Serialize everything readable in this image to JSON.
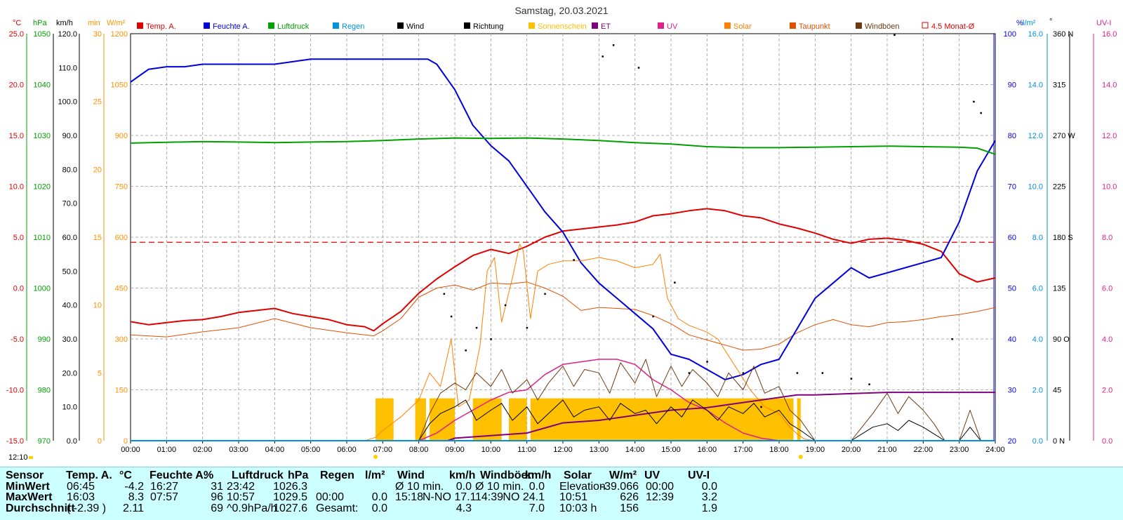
{
  "title": "Samstag, 20.03.2021",
  "time_marker": "12:10",
  "legend": [
    {
      "name": "Temp. A.",
      "color": "#e00000"
    },
    {
      "name": "Feuchte A.",
      "color": "#0000dd"
    },
    {
      "name": "Luftdruck",
      "color": "#00a000"
    },
    {
      "name": "Regen",
      "color": "#0090e0"
    },
    {
      "name": "Wind",
      "color": "#000000"
    },
    {
      "name": "Richtung",
      "color": "#000000"
    },
    {
      "name": "Sonnenschein",
      "color": "#ffc000"
    },
    {
      "name": "ET",
      "color": "#800080"
    },
    {
      "name": "UV",
      "color": "#e0208a"
    },
    {
      "name": "Solar",
      "color": "#ff8000"
    },
    {
      "name": "Taupunkt",
      "color": "#e05000"
    },
    {
      "name": "Windböen",
      "color": "#6b3a10"
    },
    {
      "name": "4.5 Monat-Ø",
      "color": "#e00000"
    }
  ],
  "axis_units": {
    "temp": "°C",
    "pressure": "hPa",
    "wind": "km/h",
    "sun": "min",
    "solar": "W/m²",
    "humidity": "%",
    "rain": "l/m²",
    "direction": "°",
    "uvi": "UV-I"
  },
  "axes": {
    "temp": [
      "25.0",
      "20.0",
      "15.0",
      "10.0",
      "5.0",
      "0.0",
      "-5.0",
      "-10.0",
      "-15.0"
    ],
    "pressure": [
      "1050",
      "1040",
      "1030",
      "1020",
      "1010",
      "1000",
      "990",
      "980",
      "970"
    ],
    "wind": [
      "120.0",
      "110.0",
      "100.0",
      "90.0",
      "80.0",
      "70.0",
      "60.0",
      "50.0",
      "40.0",
      "30.0",
      "20.0",
      "10.0",
      "0.0"
    ],
    "sun": [
      "30",
      "25",
      "20",
      "15",
      "10",
      "5",
      "0"
    ],
    "solar": [
      "1200",
      "1050",
      "900",
      "750",
      "600",
      "450",
      "300",
      "150",
      "0"
    ],
    "humidity": [
      "100",
      "90",
      "80",
      "70",
      "60",
      "50",
      "40",
      "30",
      "20"
    ],
    "rain": [
      "16.0",
      "14.0",
      "12.0",
      "10.0",
      "8.0",
      "6.0",
      "4.0",
      "2.0",
      "0.0"
    ],
    "direction": [
      "360 N",
      "315",
      "270 W",
      "225",
      "180 S",
      "135",
      "90 O",
      "45",
      "0 N"
    ],
    "uvi": [
      "16.0",
      "14.0",
      "12.0",
      "10.0",
      "8.0",
      "6.0",
      "4.0",
      "2.0",
      "0.0"
    ],
    "hours": [
      "00:00",
      "01:00",
      "02:00",
      "03:00",
      "04:00",
      "05:00",
      "06:00",
      "07:00",
      "08:00",
      "09:00",
      "10:00",
      "11:00",
      "12:00",
      "13:00",
      "14:00",
      "15:00",
      "16:00",
      "17:00",
      "18:00",
      "19:00",
      "20:00",
      "21:00",
      "22:00",
      "23:00",
      "24:00"
    ]
  },
  "chart_data": {
    "type": "line",
    "title": "Samstag, 20.03.2021",
    "x_range": [
      0,
      24
    ],
    "reference_line": {
      "name": "4.5 Monat-Ø",
      "axis": "temp",
      "value": 4.5
    },
    "series": [
      {
        "name": "Temp. A.",
        "unit": "°C",
        "x": [
          0,
          0.5,
          1,
          1.5,
          2,
          2.5,
          3,
          3.5,
          4,
          4.5,
          5,
          5.5,
          6,
          6.5,
          6.75,
          7,
          7.5,
          8,
          8.5,
          9,
          9.5,
          10,
          10.5,
          11,
          11.5,
          12,
          12.5,
          13,
          13.5,
          14,
          14.5,
          15,
          15.5,
          16,
          16.5,
          17,
          17.5,
          18,
          18.5,
          19,
          19.5,
          20,
          20.5,
          21,
          21.5,
          22,
          22.5,
          23,
          23.5,
          24
        ],
        "y": [
          -3.3,
          -3.6,
          -3.4,
          -3.2,
          -3.1,
          -2.8,
          -2.4,
          -2.2,
          -2.0,
          -2.5,
          -2.8,
          -3.1,
          -3.6,
          -3.8,
          -4.2,
          -3.5,
          -2.3,
          -0.5,
          0.9,
          2.1,
          3.2,
          3.8,
          3.4,
          4.1,
          5.0,
          5.6,
          5.8,
          6.0,
          6.2,
          6.5,
          7.1,
          7.3,
          7.6,
          7.8,
          7.6,
          7.1,
          6.9,
          6.3,
          5.9,
          5.4,
          4.8,
          4.4,
          4.8,
          4.9,
          4.7,
          4.3,
          3.6,
          1.4,
          0.6,
          1.0
        ]
      },
      {
        "name": "Taupunkt",
        "unit": "°C",
        "x": [
          0,
          1,
          2,
          3,
          4,
          5,
          6,
          6.75,
          7,
          7.5,
          8,
          8.5,
          9,
          9.5,
          10,
          10.5,
          11,
          11.5,
          12,
          12.5,
          13,
          13.5,
          14,
          14.5,
          15,
          15.5,
          16,
          16.5,
          17,
          17.5,
          18,
          18.5,
          19,
          19.5,
          20,
          20.5,
          21,
          21.5,
          22,
          22.5,
          23,
          23.5,
          24
        ],
        "y": [
          -4.6,
          -4.8,
          -4.3,
          -3.9,
          -3.0,
          -3.9,
          -4.4,
          -4.7,
          -4.2,
          -3.0,
          -0.9,
          0.0,
          0.3,
          -0.2,
          0.5,
          0.4,
          0.6,
          0.0,
          -0.8,
          -2.2,
          -1.9,
          -2.0,
          -2.1,
          -2.7,
          -3.5,
          -4.6,
          -5.1,
          -5.6,
          -6.1,
          -6.0,
          -5.5,
          -4.4,
          -3.6,
          -3.1,
          -3.6,
          -3.8,
          -3.4,
          -3.3,
          -3.1,
          -2.8,
          -2.6,
          -2.3,
          -1.9
        ]
      },
      {
        "name": "Feuchte A.",
        "unit": "%",
        "x": [
          0,
          0.3,
          0.5,
          1,
          1.5,
          2,
          2.5,
          3,
          3.5,
          4,
          4.5,
          5,
          5.5,
          6,
          6.5,
          7,
          7.5,
          8,
          8.25,
          8.5,
          9,
          9.5,
          10,
          10.5,
          11,
          11.5,
          12,
          12.5,
          13,
          13.5,
          14,
          14.5,
          15,
          15.5,
          16,
          16.5,
          17,
          17.5,
          18,
          18.5,
          19,
          19.5,
          20,
          20.5,
          21,
          21.5,
          22,
          22.5,
          23,
          23.5,
          24
        ],
        "y": [
          90.5,
          92,
          93,
          93.5,
          93.5,
          94,
          94,
          94,
          94,
          94,
          94.5,
          95,
          95,
          95,
          95,
          95,
          95,
          95,
          95,
          94,
          89,
          82,
          78,
          75,
          70,
          65,
          61,
          55,
          51,
          48,
          45,
          42,
          37,
          36,
          34,
          32,
          33,
          35,
          36,
          42,
          48,
          51,
          54,
          52,
          53,
          54,
          55,
          56,
          63,
          73,
          79
        ]
      },
      {
        "name": "Luftdruck",
        "unit": "hPa",
        "x": [
          0,
          2,
          3,
          4,
          5,
          6,
          7,
          8,
          9,
          10,
          11,
          12,
          13,
          14,
          15,
          16,
          17,
          18,
          19,
          20,
          21,
          22,
          23,
          23.5,
          24
        ],
        "y": [
          1028.5,
          1028.8,
          1028.7,
          1028.6,
          1028.7,
          1028.8,
          1029.0,
          1029.3,
          1029.5,
          1029.4,
          1029.5,
          1029.3,
          1029.0,
          1028.6,
          1028.3,
          1027.8,
          1027.6,
          1027.6,
          1027.7,
          1027.8,
          1027.9,
          1027.8,
          1027.7,
          1027.5,
          1026.3
        ]
      },
      {
        "name": "Solar",
        "unit": "W/m²",
        "x": [
          0,
          6.5,
          6.8,
          7,
          7.5,
          8,
          8.3,
          8.6,
          8.9,
          9.1,
          9.4,
          9.7,
          9.9,
          10.1,
          10.3,
          10.6,
          10.8,
          10.9,
          11.1,
          11.3,
          11.6,
          12,
          12.5,
          13,
          13.5,
          14,
          14.5,
          14.7,
          14.9,
          15.2,
          15.5,
          16,
          16.3,
          16.6,
          16.9,
          17.2,
          17.6,
          18,
          18.3,
          18.5,
          18.7,
          19
        ],
        "y": [
          0,
          0,
          10,
          30,
          70,
          120,
          200,
          160,
          300,
          100,
          120,
          280,
          500,
          540,
          350,
          480,
          580,
          560,
          360,
          500,
          520,
          530,
          530,
          540,
          530,
          510,
          520,
          550,
          420,
          360,
          340,
          320,
          300,
          250,
          200,
          150,
          100,
          80,
          40,
          20,
          5,
          0
        ]
      },
      {
        "name": "UV",
        "unit": "UV-I",
        "x": [
          0,
          8,
          8.5,
          9,
          9.5,
          10,
          10.5,
          11,
          11.5,
          12,
          12.5,
          13,
          13.5,
          14,
          14.5,
          15,
          15.5,
          16,
          16.5,
          17,
          17.5,
          18,
          18.5
        ],
        "y": [
          0,
          0,
          0.3,
          0.8,
          1.2,
          1.6,
          1.9,
          2.0,
          2.6,
          3.0,
          3.1,
          3.2,
          3.2,
          3.0,
          2.4,
          2.0,
          1.5,
          1.2,
          0.7,
          0.3,
          0.1,
          0,
          0
        ]
      },
      {
        "name": "ET",
        "unit": "l/m²",
        "x": [
          0,
          8.8,
          9,
          10,
          11,
          11.5,
          12,
          13,
          14,
          14.5,
          15,
          16,
          16.5,
          17,
          18,
          18.5,
          19,
          20,
          21,
          22,
          23,
          24
        ],
        "y": [
          0,
          0,
          0.1,
          0.2,
          0.3,
          0.5,
          0.7,
          0.8,
          1.0,
          1.1,
          1.2,
          1.3,
          1.4,
          1.5,
          1.7,
          1.8,
          1.8,
          1.85,
          1.9,
          1.9,
          1.9,
          1.9
        ]
      },
      {
        "name": "Wind",
        "unit": "km/h",
        "x": [
          0,
          8,
          8.3,
          8.6,
          9,
          9.3,
          9.6,
          10,
          10.3,
          10.6,
          11,
          11.3,
          11.6,
          12,
          12.3,
          12.6,
          13,
          13.3,
          13.6,
          14,
          14.3,
          14.6,
          15,
          15.3,
          15.6,
          16,
          16.3,
          16.6,
          17,
          17.3,
          17.6,
          18,
          18.3,
          18.6,
          19,
          20,
          20.3,
          20.6,
          21,
          21.3,
          21.6,
          22,
          22.3,
          22.6,
          23,
          23.3,
          23.6,
          24
        ],
        "y": [
          0,
          0,
          5,
          8,
          10,
          12,
          6,
          9,
          11,
          6,
          10,
          5,
          8,
          12,
          7,
          9,
          10,
          6,
          11,
          8,
          9,
          5,
          10,
          7,
          12,
          9,
          6,
          10,
          8,
          11,
          7,
          9,
          5,
          3,
          0,
          0,
          2,
          4,
          5,
          3,
          6,
          4,
          2,
          0,
          0,
          4,
          0,
          0
        ]
      },
      {
        "name": "Windböen",
        "unit": "km/h",
        "x": [
          0,
          8,
          8.3,
          8.6,
          9,
          9.3,
          9.6,
          10,
          10.3,
          10.6,
          11,
          11.3,
          11.6,
          12,
          12.3,
          12.6,
          13,
          13.3,
          13.6,
          14,
          14.3,
          14.6,
          15,
          15.3,
          15.6,
          16,
          16.3,
          16.6,
          17,
          17.3,
          17.6,
          18,
          18.3,
          18.6,
          19,
          20,
          20.3,
          20.6,
          21,
          21.3,
          21.6,
          22,
          22.3,
          22.6,
          23,
          23.3,
          23.6,
          24
        ],
        "y": [
          0,
          0,
          8,
          14,
          17,
          15,
          20,
          16,
          21,
          14,
          18,
          12,
          17,
          22,
          16,
          21,
          20,
          14,
          23,
          17,
          24,
          13,
          22,
          16,
          21,
          17,
          13,
          20,
          15,
          22,
          14,
          16,
          9,
          6,
          0,
          0,
          4,
          8,
          14,
          8,
          13,
          9,
          5,
          0,
          0,
          9,
          0,
          0
        ]
      },
      {
        "name": "Regen",
        "unit": "l/m²",
        "x": [
          0,
          24
        ],
        "y": [
          0,
          0
        ]
      }
    ],
    "sunshine_blocks_hours": [
      [
        6.8,
        7.3
      ],
      [
        7.9,
        8.2
      ],
      [
        8.3,
        9.0
      ],
      [
        9.5,
        10.3
      ],
      [
        10.5,
        11.0
      ],
      [
        11.1,
        18.4
      ],
      [
        18.5,
        18.6
      ]
    ],
    "direction_points": [
      [
        8.7,
        130
      ],
      [
        8.9,
        110
      ],
      [
        9.3,
        80
      ],
      [
        9.6,
        100
      ],
      [
        10,
        90
      ],
      [
        10.4,
        120
      ],
      [
        11,
        100
      ],
      [
        11.5,
        130
      ],
      [
        12.3,
        160
      ],
      [
        13.1,
        340
      ],
      [
        13.4,
        350
      ],
      [
        14.1,
        330
      ],
      [
        14.5,
        110
      ],
      [
        15.1,
        140
      ],
      [
        15.5,
        60
      ],
      [
        16,
        70
      ],
      [
        17,
        60
      ],
      [
        17.5,
        30
      ],
      [
        18.5,
        60
      ],
      [
        19.2,
        60
      ],
      [
        20,
        55
      ],
      [
        20.5,
        50
      ],
      [
        21.2,
        359
      ],
      [
        22.8,
        90
      ],
      [
        23.4,
        300
      ],
      [
        23.6,
        290
      ]
    ]
  },
  "stats": {
    "sensor": {
      "header": "Sensor",
      "rows": [
        "MinWert",
        "MaxWert",
        "Durchschnitt"
      ]
    },
    "temp": {
      "header": "Temp. A.",
      "unit": "°C",
      "rows": [
        [
          "06:45",
          "-4.2"
        ],
        [
          "16:03",
          "8.3"
        ],
        [
          "( -2.39 )",
          "2.11"
        ]
      ]
    },
    "humidity": {
      "header": "Feuchte A.",
      "unit": "%",
      "rows": [
        [
          "16:27",
          "31"
        ],
        [
          "07:57",
          "96"
        ],
        [
          "",
          "69"
        ]
      ]
    },
    "pressure": {
      "header": "Luftdruck",
      "unit": "hPa",
      "rows": [
        [
          "23:42",
          "1026.3"
        ],
        [
          "10:57",
          "1029.5"
        ],
        [
          "^0.9hPa/h",
          "1027.6"
        ]
      ]
    },
    "rain": {
      "header": "Regen",
      "unit": "l/m²",
      "rows": [
        [
          "",
          ""
        ],
        [
          "00:00",
          "0.0"
        ],
        [
          "Gesamt:",
          "0.0"
        ]
      ]
    },
    "wind": {
      "header": "Wind",
      "unit": "km/h",
      "rows": [
        [
          "Ø 10 min.",
          "0.0"
        ],
        [
          "15:18",
          "N-NO 17.1"
        ],
        [
          "",
          "4.3"
        ]
      ]
    },
    "gusts": {
      "header": "Windböen",
      "unit": "km/h",
      "rows": [
        [
          "Ø 10 min.",
          "0.0"
        ],
        [
          "14:39",
          "NO 24.1"
        ],
        [
          "",
          "7.0"
        ]
      ]
    },
    "solar": {
      "header": "Solar",
      "unit": "W/m²",
      "rows": [
        [
          "Elevation",
          "-39.066"
        ],
        [
          "10:51",
          "626"
        ],
        [
          "10:03 h",
          "156"
        ]
      ]
    },
    "uv": {
      "header": "UV",
      "unit": "UV-I",
      "rows": [
        [
          "00:00",
          "0.0"
        ],
        [
          "12:39",
          "3.2"
        ],
        [
          "",
          "1.9"
        ]
      ]
    }
  }
}
